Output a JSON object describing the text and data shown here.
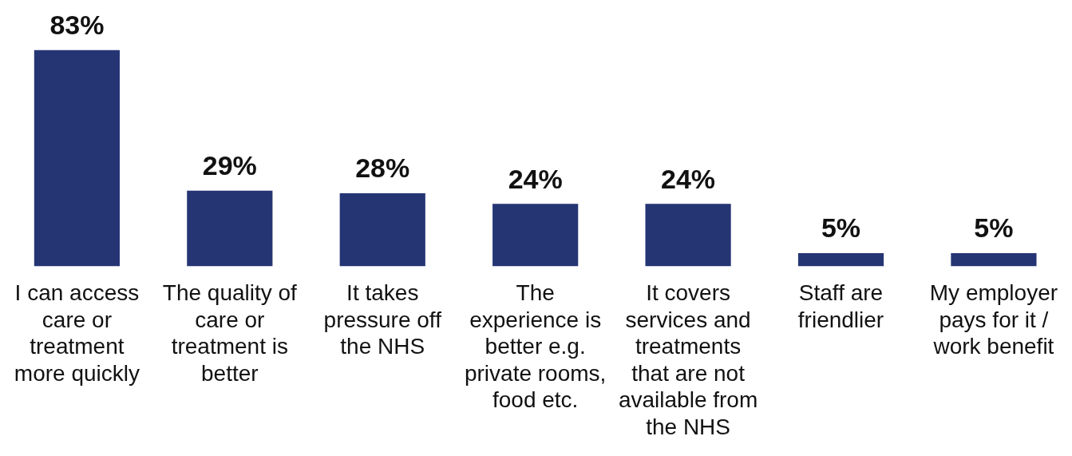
{
  "chart_data": {
    "type": "bar",
    "categories": [
      "I can access care or treatment more quickly",
      "The quality of care or treatment is better",
      "It takes pressure off the NHS",
      "The experience is better e.g. private rooms, food etc.",
      "It covers services and treatments that are not available from the NHS",
      "Staff are friendlier",
      "My employer pays for it / work benefit"
    ],
    "values": [
      83,
      29,
      28,
      24,
      24,
      5,
      5
    ],
    "color": "#253574",
    "value_labels": [
      "83%",
      "29%",
      "28%",
      "24%",
      "24%",
      "5%",
      "5%"
    ],
    "grid": false,
    "legend": false
  }
}
